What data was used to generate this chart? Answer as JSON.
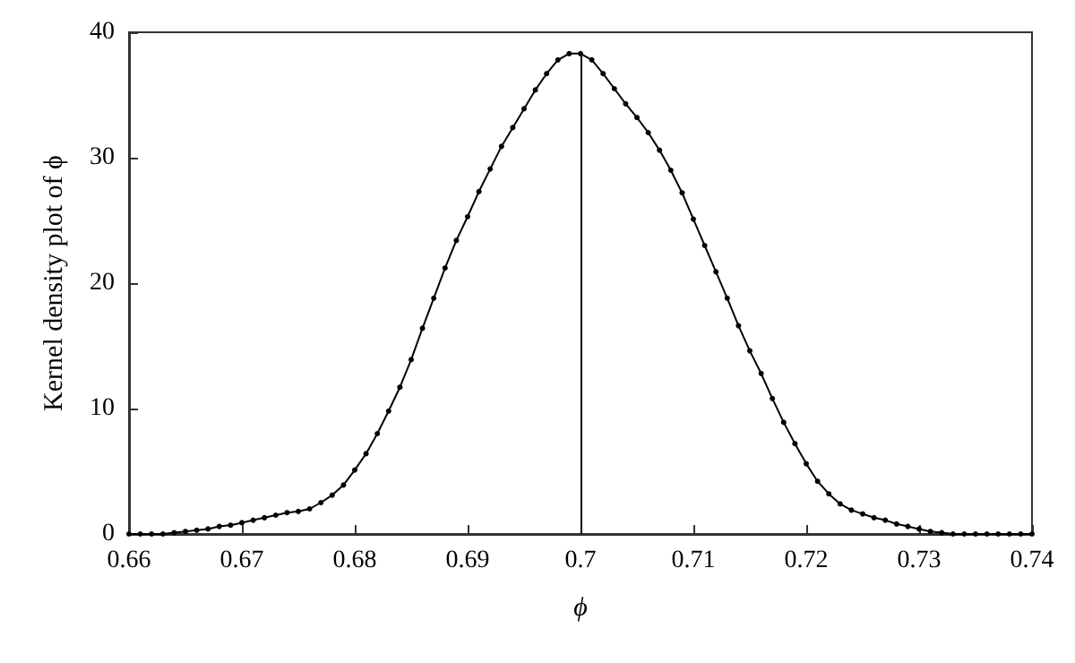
{
  "chart_data": {
    "type": "line",
    "xlabel": "ϕ",
    "ylabel": "Kernel density plot of ϕ",
    "marker": "circle",
    "grid": false,
    "xlim": [
      0.66,
      0.74
    ],
    "xticks": [
      0.66,
      0.67,
      0.68,
      0.69,
      0.7,
      0.71,
      0.72,
      0.73,
      0.74
    ],
    "ylim": [
      0,
      40
    ],
    "yticks": [
      0,
      10,
      20,
      30,
      40
    ],
    "ref_lines": [
      {
        "axis": "x",
        "value": 0.7,
        "color": "#000000"
      }
    ],
    "series": [
      {
        "color": "#000000",
        "x": [
          0.66,
          0.661,
          0.662,
          0.663,
          0.664,
          0.665,
          0.666,
          0.667,
          0.668,
          0.669,
          0.67,
          0.671,
          0.672,
          0.673,
          0.674,
          0.675,
          0.676,
          0.677,
          0.678,
          0.679,
          0.68,
          0.681,
          0.682,
          0.683,
          0.684,
          0.685,
          0.686,
          0.687,
          0.688,
          0.689,
          0.69,
          0.691,
          0.692,
          0.693,
          0.694,
          0.695,
          0.696,
          0.697,
          0.698,
          0.699,
          0.7,
          0.701,
          0.702,
          0.703,
          0.704,
          0.705,
          0.706,
          0.707,
          0.708,
          0.709,
          0.71,
          0.711,
          0.712,
          0.713,
          0.714,
          0.715,
          0.716,
          0.717,
          0.718,
          0.719,
          0.72,
          0.721,
          0.722,
          0.723,
          0.724,
          0.725,
          0.726,
          0.727,
          0.728,
          0.729,
          0.73,
          0.731,
          0.732,
          0.733,
          0.734,
          0.735,
          0.736,
          0.737,
          0.738,
          0.739,
          0.74
        ],
        "values": [
          0,
          0,
          0,
          0,
          0.1,
          0.2,
          0.3,
          0.4,
          0.6,
          0.7,
          0.9,
          1.1,
          1.3,
          1.5,
          1.7,
          1.8,
          2,
          2.5,
          3.1,
          3.9,
          5.1,
          6.4,
          8,
          9.8,
          11.7,
          13.9,
          16.4,
          18.8,
          21.2,
          23.4,
          25.3,
          27.3,
          29.1,
          30.9,
          32.4,
          33.9,
          35.4,
          36.7,
          37.8,
          38.3,
          38.3,
          37.8,
          36.7,
          35.5,
          34.3,
          33.2,
          32,
          30.6,
          29,
          27.2,
          25.1,
          23,
          20.9,
          18.8,
          16.6,
          14.6,
          12.8,
          10.8,
          8.9,
          7.2,
          5.6,
          4.2,
          3.2,
          2.4,
          1.9,
          1.6,
          1.3,
          1.1,
          0.8,
          0.6,
          0.4,
          0.2,
          0.1,
          0,
          0,
          0,
          0,
          0,
          0,
          0,
          0
        ]
      }
    ]
  }
}
